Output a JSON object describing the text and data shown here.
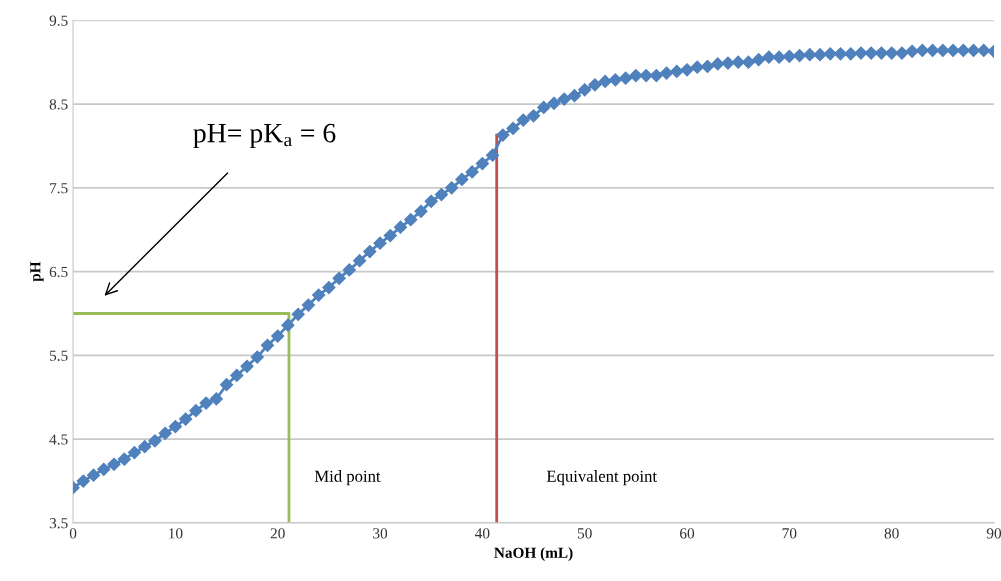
{
  "chart_data": {
    "type": "line",
    "xlabel": "NaOH (mL)",
    "ylabel": "pH",
    "xlim": [
      0,
      90
    ],
    "xticks": [
      0,
      10,
      20,
      30,
      40,
      50,
      60,
      70,
      80,
      90
    ],
    "ylim": [
      3.5,
      9.5
    ],
    "yticks": [
      3.5,
      4.5,
      5.5,
      6.5,
      7.5,
      8.5,
      9.5
    ],
    "grid": "y",
    "series": [
      {
        "color": "#4f81bd",
        "marker": "diamond",
        "x": [
          0,
          1,
          2,
          3,
          4,
          5,
          6,
          7,
          8,
          9,
          10,
          11,
          12,
          13,
          14,
          15,
          16,
          17,
          18,
          19,
          20,
          21,
          22,
          23,
          24,
          25,
          26,
          27,
          28,
          29,
          30,
          31,
          32,
          33,
          34,
          35,
          36,
          37,
          38,
          39,
          40,
          41,
          42,
          43,
          44,
          45,
          46,
          47,
          48,
          49,
          50,
          51,
          52,
          53,
          54,
          55,
          56,
          57,
          58,
          59,
          60,
          61,
          62,
          63,
          64,
          65,
          66,
          67,
          68,
          69,
          70,
          71,
          72,
          73,
          74,
          75,
          76,
          77,
          78,
          79,
          80,
          81,
          82,
          83,
          84,
          85,
          86,
          87,
          88,
          89,
          90
        ],
        "values": [
          3.92,
          4.0,
          4.07,
          4.14,
          4.2,
          4.26,
          4.34,
          4.41,
          4.48,
          4.57,
          4.65,
          4.74,
          4.84,
          4.93,
          4.98,
          5.15,
          5.26,
          5.37,
          5.48,
          5.62,
          5.73,
          5.86,
          5.99,
          6.1,
          6.22,
          6.31,
          6.42,
          6.52,
          6.63,
          6.74,
          6.84,
          6.93,
          7.03,
          7.12,
          7.22,
          7.34,
          7.42,
          7.5,
          7.6,
          7.69,
          7.79,
          7.89,
          8.13,
          8.21,
          8.31,
          8.36,
          8.46,
          8.51,
          8.56,
          8.6,
          8.67,
          8.73,
          8.77,
          8.79,
          8.81,
          8.84,
          8.84,
          8.84,
          8.87,
          8.89,
          8.91,
          8.94,
          8.95,
          8.98,
          8.99,
          9.0,
          9.0,
          9.03,
          9.06,
          9.06,
          9.07,
          9.08,
          9.09,
          9.09,
          9.1,
          9.1,
          9.1,
          9.11,
          9.11,
          9.11,
          9.11,
          9.11,
          9.13,
          9.14,
          9.14,
          9.14,
          9.14,
          9.14,
          9.14,
          9.14,
          9.13
        ]
      },
      {
        "color": "#9bbb59",
        "marker": "none",
        "x": [
          0,
          21.1,
          21.1
        ],
        "values": [
          6,
          6,
          3.5
        ]
      },
      {
        "color": "#c0504d",
        "marker": "none",
        "x": [
          41.4,
          41.4
        ],
        "values": [
          3.5,
          8.13
        ]
      }
    ],
    "annotations": [
      "pH= pK$_{a}$ = 6",
      "Mid point",
      "Equivalent point"
    ]
  }
}
